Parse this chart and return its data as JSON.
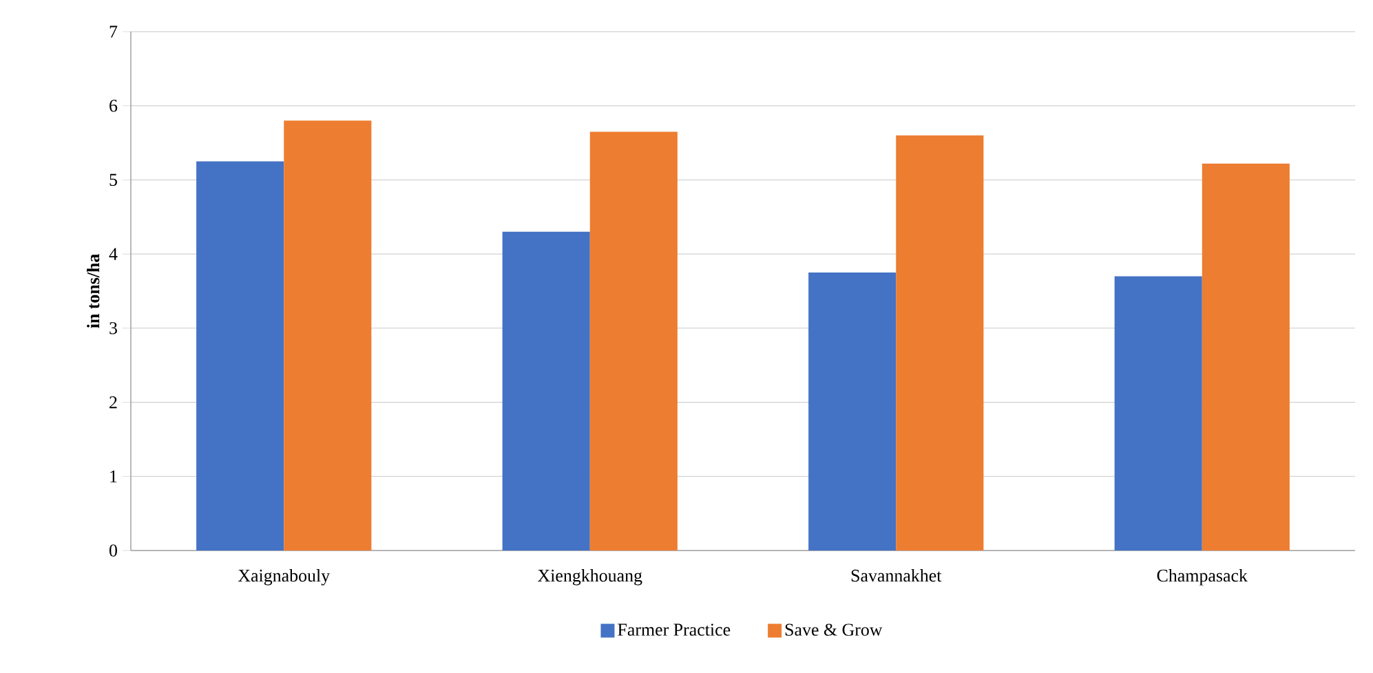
{
  "chart_data": {
    "type": "bar",
    "ylabel": "in tons/ha",
    "categories": [
      "Xaignabouly",
      "Xiengkhouang",
      "Savannakhet",
      "Champasack"
    ],
    "series": [
      {
        "name": "Farmer Practice",
        "color": "#4472c4",
        "values": [
          5.25,
          4.3,
          3.75,
          3.7
        ]
      },
      {
        "name": "Save & Grow",
        "color": "#ed7d31",
        "values": [
          5.8,
          5.65,
          5.6,
          5.22
        ]
      }
    ],
    "ylim": [
      0,
      7
    ],
    "yticks": [
      0,
      1,
      2,
      3,
      4,
      5,
      6,
      7
    ],
    "grid": "y",
    "legend": "bottom"
  }
}
